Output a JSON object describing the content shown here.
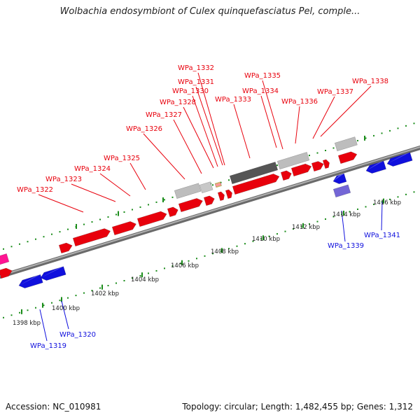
{
  "header": {
    "title": "Wolbachia endosymbiont of Culex quinquefasciatus Pel, comple..."
  },
  "footer": {
    "accession": "Accession: NC_010981",
    "topology": "Topology: circular; Length: 1,482,455 bp; Genes: 1,312"
  },
  "colors": {
    "forward_gene": "#e8000c",
    "reverse_gene": "#1010dd",
    "other_feature": "#9a9a9a",
    "dark_feature": "#555555",
    "pink_feature": "#ff1493",
    "purple_feature": "#7466d6",
    "yellow_feature": "#f0e060",
    "tick": "#1a8c1a",
    "backbone": "#888888"
  },
  "scale": {
    "ticks_outer": [
      "1398 kbp",
      "1400 kbp",
      "1402 kbp",
      "1404 kbp",
      "1406 kbp",
      "1408 kbp",
      "1410 kbp",
      "1412 kbp",
      "1414 kbp",
      "1416 kbp"
    ]
  },
  "labels": {
    "forward": [
      "WPa_1322",
      "WPa_1323",
      "WPa_1324",
      "WPa_1325",
      "WPa_1326",
      "WPa_1327",
      "WPa_1328",
      "WPa_1330",
      "WPa_1331",
      "WPa_1332",
      "WPa_1333",
      "WPa_1334",
      "WPa_1335",
      "WPa_1336",
      "WPa_1337",
      "WPa_1338"
    ],
    "reverse": [
      "WPa_1319",
      "WPa_1320",
      "WPa_1339",
      "WPa_1341"
    ]
  }
}
